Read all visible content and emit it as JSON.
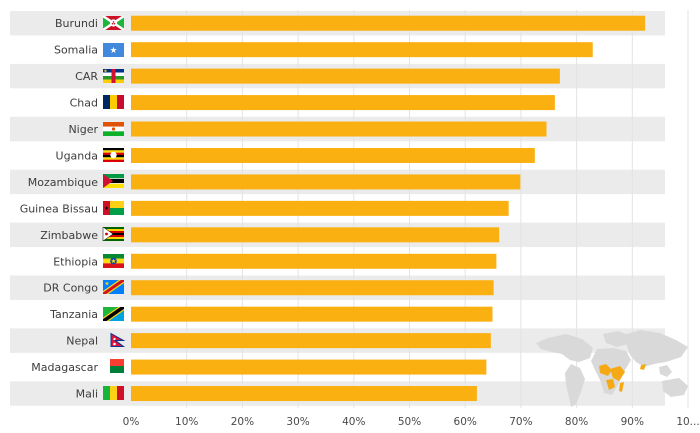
{
  "chart_data": {
    "type": "bar",
    "orientation": "horizontal",
    "title": "",
    "xlabel": "",
    "ylabel": "",
    "categories": [
      "Burundi",
      "Somalia",
      "CAR",
      "Chad",
      "Niger",
      "Uganda",
      "Mozambique",
      "Guinea Bissau",
      "Zimbabwe",
      "Ethiopia",
      "DR Congo",
      "Tanzania",
      "Nepal",
      "Madagascar",
      "Mali"
    ],
    "values": [
      92.3,
      82.9,
      77.0,
      76.1,
      74.6,
      72.5,
      69.9,
      67.8,
      66.1,
      65.6,
      65.1,
      64.9,
      64.6,
      63.8,
      62.1
    ],
    "xlim": [
      0,
      100
    ],
    "x_ticks": [
      "0%",
      "10%",
      "20%",
      "30%",
      "40%",
      "50%",
      "60%",
      "70%",
      "80%",
      "90%",
      "10..."
    ],
    "grid": true,
    "legend": "none",
    "colors": {
      "bar": "#fab010",
      "row_band": "#ebebeb",
      "grid": "#e3e3e3"
    },
    "flags": [
      "burundi-flag-icon",
      "somalia-flag-icon",
      "car-flag-icon",
      "chad-flag-icon",
      "niger-flag-icon",
      "uganda-flag-icon",
      "mozambique-flag-icon",
      "guinea-bissau-flag-icon",
      "zimbabwe-flag-icon",
      "ethiopia-flag-icon",
      "dr-congo-flag-icon",
      "tanzania-flag-icon",
      "nepal-flag-icon",
      "madagascar-flag-icon",
      "mali-flag-icon"
    ],
    "inset_map": "world-map-icon"
  }
}
